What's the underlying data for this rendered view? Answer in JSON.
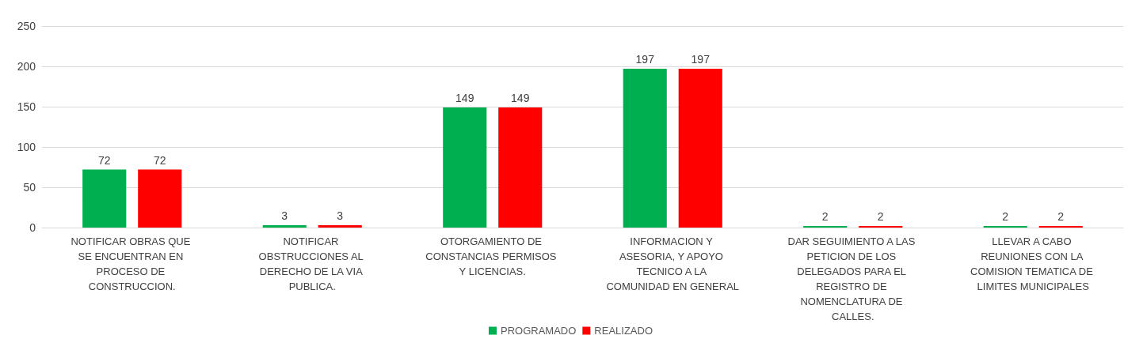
{
  "chart_data": {
    "type": "bar",
    "categories": [
      "NOTIFICAR OBRAS QUE SE ENCUENTRAN EN PROCESO DE CONSTRUCCION.",
      "NOTIFICAR OBSTRUCCIONES AL DERECHO DE LA VIA PUBLICA.",
      "OTORGAMIENTO DE CONSTANCIAS PERMISOS Y LICENCIAS.",
      "INFORMACION Y ASESORIA, Y APOYO TECNICO A LA COMUNIDAD EN GENERAL",
      "DAR SEGUIMIENTO A LAS PETICION DE LOS DELEGADOS PARA EL REGISTRO DE NOMENCLATURA DE CALLES.",
      "LLEVAR A CABO REUNIONES CON LA COMISION TEMATICA DE LIMITES MUNICIPALES"
    ],
    "series": [
      {
        "name": "PROGRAMADO",
        "color": "#00b050",
        "values": [
          72,
          3,
          149,
          197,
          2,
          2
        ]
      },
      {
        "name": "REALIZADO",
        "color": "#ff0000",
        "values": [
          72,
          3,
          149,
          197,
          2,
          2
        ]
      }
    ],
    "ylim": [
      0,
      250
    ],
    "yticks": [
      0,
      50,
      100,
      150,
      200,
      250
    ],
    "grid": "y",
    "legend": "bottom",
    "data_labels": true
  }
}
